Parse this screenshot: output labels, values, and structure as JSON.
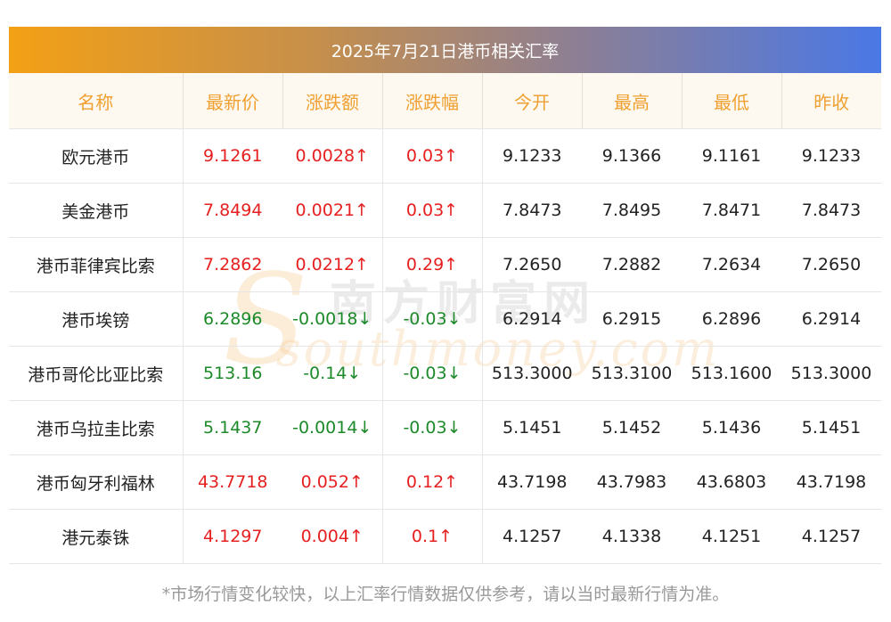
{
  "title": "2025年7月21日港币相关汇率",
  "headers": [
    "名称",
    "最新价",
    "涨跌额",
    "涨跌幅",
    "今开",
    "最高",
    "最低",
    "昨收"
  ],
  "rows": [
    {
      "name": "欧元港币",
      "latest": "9.1261",
      "change": "0.0028↑",
      "pct": "0.03↑",
      "open": "9.1233",
      "high": "9.1366",
      "low": "9.1161",
      "prev": "9.1233",
      "dir": "up"
    },
    {
      "name": "美金港币",
      "latest": "7.8494",
      "change": "0.0021↑",
      "pct": "0.03↑",
      "open": "7.8473",
      "high": "7.8495",
      "low": "7.8471",
      "prev": "7.8473",
      "dir": "up"
    },
    {
      "name": "港币菲律宾比索",
      "latest": "7.2862",
      "change": "0.0212↑",
      "pct": "0.29↑",
      "open": "7.2650",
      "high": "7.2882",
      "low": "7.2634",
      "prev": "7.2650",
      "dir": "up"
    },
    {
      "name": "港币埃镑",
      "latest": "6.2896",
      "change": "-0.0018↓",
      "pct": "-0.03↓",
      "open": "6.2914",
      "high": "6.2915",
      "low": "6.2896",
      "prev": "6.2914",
      "dir": "down"
    },
    {
      "name": "港币哥伦比亚比索",
      "latest": "513.16",
      "change": "-0.14↓",
      "pct": "-0.03↓",
      "open": "513.3000",
      "high": "513.3100",
      "low": "513.1600",
      "prev": "513.3000",
      "dir": "down"
    },
    {
      "name": "港币乌拉圭比索",
      "latest": "5.1437",
      "change": "-0.0014↓",
      "pct": "-0.03↓",
      "open": "5.1451",
      "high": "5.1452",
      "low": "5.1436",
      "prev": "5.1451",
      "dir": "down"
    },
    {
      "name": "港币匈牙利福林",
      "latest": "43.7718",
      "change": "0.052↑",
      "pct": "0.12↑",
      "open": "43.7198",
      "high": "43.7983",
      "low": "43.6803",
      "prev": "43.7198",
      "dir": "up"
    },
    {
      "name": "港元泰铢",
      "latest": "4.1297",
      "change": "0.004↑",
      "pct": "0.1↑",
      "open": "4.1257",
      "high": "4.1338",
      "low": "4.1251",
      "prev": "4.1257",
      "dir": "up"
    }
  ],
  "watermark": {
    "cn": "南方财富网",
    "en": "southmoney.com",
    "s": "S"
  },
  "footnote": "*市场行情变化较快，以上汇率行情数据仅供参考，请以当时最新行情为准。",
  "colors": {
    "up": "#e62020",
    "down": "#1d8a2a",
    "header_text": "#f0a030",
    "title_gradient_start": "#f3a015",
    "title_gradient_end": "#4a78e6"
  }
}
